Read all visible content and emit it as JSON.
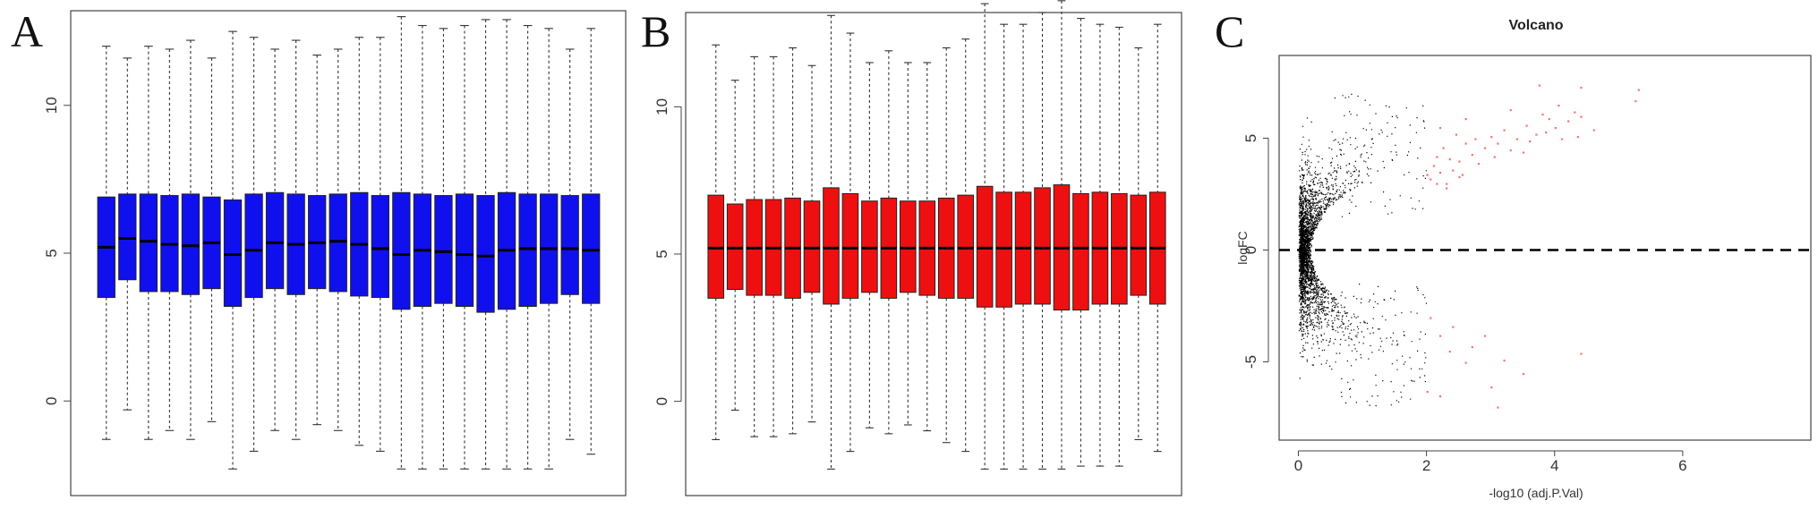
{
  "panels": {
    "a": {
      "label": "A"
    },
    "b": {
      "label": "B"
    },
    "c": {
      "label": "C"
    }
  },
  "chart_data": [
    {
      "type": "boxplot",
      "panel": "A",
      "box_color": "#1010ee",
      "ylim": [
        -3.2,
        13.2
      ],
      "yticks": [
        0,
        5,
        10
      ],
      "boxes": [
        {
          "q1": 3.5,
          "median": 5.2,
          "q3": 6.9,
          "whisker_low": -1.3,
          "whisker_high": 12.0
        },
        {
          "q1": 4.1,
          "median": 5.5,
          "q3": 7.0,
          "whisker_low": -0.3,
          "whisker_high": 11.6
        },
        {
          "q1": 3.7,
          "median": 5.4,
          "q3": 7.0,
          "whisker_low": -1.3,
          "whisker_high": 12.0
        },
        {
          "q1": 3.7,
          "median": 5.3,
          "q3": 6.95,
          "whisker_low": -1.0,
          "whisker_high": 11.9
        },
        {
          "q1": 3.6,
          "median": 5.25,
          "q3": 7.0,
          "whisker_low": -1.3,
          "whisker_high": 12.2
        },
        {
          "q1": 3.8,
          "median": 5.35,
          "q3": 6.9,
          "whisker_low": -0.7,
          "whisker_high": 11.6
        },
        {
          "q1": 3.2,
          "median": 4.95,
          "q3": 6.8,
          "whisker_low": -2.3,
          "whisker_high": 12.5
        },
        {
          "q1": 3.5,
          "median": 5.1,
          "q3": 7.0,
          "whisker_low": -1.7,
          "whisker_high": 12.3
        },
        {
          "q1": 3.8,
          "median": 5.35,
          "q3": 7.05,
          "whisker_low": -1.0,
          "whisker_high": 11.9
        },
        {
          "q1": 3.6,
          "median": 5.3,
          "q3": 7.0,
          "whisker_low": -1.3,
          "whisker_high": 12.2
        },
        {
          "q1": 3.8,
          "median": 5.35,
          "q3": 6.95,
          "whisker_low": -0.8,
          "whisker_high": 11.7
        },
        {
          "q1": 3.7,
          "median": 5.4,
          "q3": 7.0,
          "whisker_low": -1.0,
          "whisker_high": 11.9
        },
        {
          "q1": 3.55,
          "median": 5.3,
          "q3": 7.05,
          "whisker_low": -1.5,
          "whisker_high": 12.3
        },
        {
          "q1": 3.5,
          "median": 5.15,
          "q3": 6.95,
          "whisker_low": -1.7,
          "whisker_high": 12.3
        },
        {
          "q1": 3.1,
          "median": 4.95,
          "q3": 7.05,
          "whisker_low": -2.3,
          "whisker_high": 13.0
        },
        {
          "q1": 3.2,
          "median": 5.1,
          "q3": 7.0,
          "whisker_low": -2.3,
          "whisker_high": 12.7
        },
        {
          "q1": 3.3,
          "median": 5.05,
          "q3": 6.95,
          "whisker_low": -2.3,
          "whisker_high": 12.6
        },
        {
          "q1": 3.2,
          "median": 4.95,
          "q3": 7.0,
          "whisker_low": -2.3,
          "whisker_high": 12.7
        },
        {
          "q1": 3.0,
          "median": 4.9,
          "q3": 6.95,
          "whisker_low": -2.3,
          "whisker_high": 12.9
        },
        {
          "q1": 3.1,
          "median": 5.1,
          "q3": 7.05,
          "whisker_low": -2.3,
          "whisker_high": 12.9
        },
        {
          "q1": 3.2,
          "median": 5.15,
          "q3": 7.0,
          "whisker_low": -2.3,
          "whisker_high": 12.7
        },
        {
          "q1": 3.3,
          "median": 5.15,
          "q3": 7.0,
          "whisker_low": -2.3,
          "whisker_high": 12.6
        },
        {
          "q1": 3.6,
          "median": 5.15,
          "q3": 6.95,
          "whisker_low": -1.3,
          "whisker_high": 11.9
        },
        {
          "q1": 3.3,
          "median": 5.1,
          "q3": 7.0,
          "whisker_low": -1.8,
          "whisker_high": 12.6
        }
      ]
    },
    {
      "type": "boxplot",
      "panel": "B",
      "box_color": "#ee1010",
      "ylim": [
        -3.2,
        13.2
      ],
      "yticks": [
        0,
        5,
        10
      ],
      "boxes": [
        {
          "q1": 3.5,
          "median": 5.2,
          "q3": 7.0,
          "whisker_low": -1.3,
          "whisker_high": 12.1
        },
        {
          "q1": 3.8,
          "median": 5.2,
          "q3": 6.7,
          "whisker_low": -0.3,
          "whisker_high": 10.9
        },
        {
          "q1": 3.6,
          "median": 5.2,
          "q3": 6.85,
          "whisker_low": -1.2,
          "whisker_high": 11.7
        },
        {
          "q1": 3.6,
          "median": 5.2,
          "q3": 6.85,
          "whisker_low": -1.2,
          "whisker_high": 11.7
        },
        {
          "q1": 3.5,
          "median": 5.2,
          "q3": 6.9,
          "whisker_low": -1.1,
          "whisker_high": 12.0
        },
        {
          "q1": 3.7,
          "median": 5.2,
          "q3": 6.8,
          "whisker_low": -0.7,
          "whisker_high": 11.4
        },
        {
          "q1": 3.3,
          "median": 5.2,
          "q3": 7.25,
          "whisker_low": -2.3,
          "whisker_high": 13.1
        },
        {
          "q1": 3.5,
          "median": 5.2,
          "q3": 7.05,
          "whisker_low": -1.7,
          "whisker_high": 12.5
        },
        {
          "q1": 3.7,
          "median": 5.2,
          "q3": 6.8,
          "whisker_low": -0.9,
          "whisker_high": 11.5
        },
        {
          "q1": 3.5,
          "median": 5.2,
          "q3": 6.9,
          "whisker_low": -1.1,
          "whisker_high": 11.9
        },
        {
          "q1": 3.7,
          "median": 5.2,
          "q3": 6.8,
          "whisker_low": -0.8,
          "whisker_high": 11.5
        },
        {
          "q1": 3.6,
          "median": 5.2,
          "q3": 6.8,
          "whisker_low": -1.0,
          "whisker_high": 11.5
        },
        {
          "q1": 3.5,
          "median": 5.2,
          "q3": 6.9,
          "whisker_low": -1.4,
          "whisker_high": 12.0
        },
        {
          "q1": 3.5,
          "median": 5.2,
          "q3": 7.0,
          "whisker_low": -1.7,
          "whisker_high": 12.3
        },
        {
          "q1": 3.2,
          "median": 5.2,
          "q3": 7.3,
          "whisker_low": -2.3,
          "whisker_high": 13.5
        },
        {
          "q1": 3.2,
          "median": 5.2,
          "q3": 7.1,
          "whisker_low": -2.3,
          "whisker_high": 12.8
        },
        {
          "q1": 3.3,
          "median": 5.2,
          "q3": 7.1,
          "whisker_low": -2.3,
          "whisker_high": 12.8
        },
        {
          "q1": 3.3,
          "median": 5.2,
          "q3": 7.25,
          "whisker_low": -2.3,
          "whisker_high": 13.2
        },
        {
          "q1": 3.1,
          "median": 5.2,
          "q3": 7.35,
          "whisker_low": -2.3,
          "whisker_high": 13.6
        },
        {
          "q1": 3.1,
          "median": 5.2,
          "q3": 7.05,
          "whisker_low": -2.2,
          "whisker_high": 13.0
        },
        {
          "q1": 3.3,
          "median": 5.2,
          "q3": 7.1,
          "whisker_low": -2.2,
          "whisker_high": 12.8
        },
        {
          "q1": 3.3,
          "median": 5.2,
          "q3": 7.05,
          "whisker_low": -2.2,
          "whisker_high": 12.7
        },
        {
          "q1": 3.6,
          "median": 5.2,
          "q3": 7.0,
          "whisker_low": -1.3,
          "whisker_high": 12.0
        },
        {
          "q1": 3.3,
          "median": 5.2,
          "q3": 7.1,
          "whisker_low": -1.7,
          "whisker_high": 12.8
        }
      ]
    },
    {
      "type": "scatter",
      "panel": "C",
      "title": "Volcano",
      "xlabel": "-log10 (adj.P.Val)",
      "ylabel": "logFC",
      "xlim": [
        -0.3,
        8.0
      ],
      "ylim": [
        -8.5,
        8.7
      ],
      "xticks": [
        0,
        2,
        4,
        6
      ],
      "yticks": [
        -5,
        0,
        5
      ],
      "hline": 0,
      "colors": {
        "not_significant": "#000000",
        "significant": "#ff7070"
      },
      "significant_points": [
        [
          2.05,
          3.2
        ],
        [
          2.1,
          3.8
        ],
        [
          2.15,
          4.2
        ],
        [
          2.2,
          3.5
        ],
        [
          2.25,
          4.6
        ],
        [
          2.3,
          3.0
        ],
        [
          2.35,
          4.1
        ],
        [
          2.4,
          3.6
        ],
        [
          2.45,
          5.2
        ],
        [
          2.5,
          4.0
        ],
        [
          2.55,
          3.4
        ],
        [
          2.6,
          4.8
        ],
        [
          2.7,
          4.3
        ],
        [
          2.75,
          5.0
        ],
        [
          2.8,
          3.9
        ],
        [
          2.9,
          4.6
        ],
        [
          3.0,
          5.1
        ],
        [
          3.05,
          4.2
        ],
        [
          3.1,
          4.8
        ],
        [
          3.2,
          5.4
        ],
        [
          3.3,
          4.5
        ],
        [
          3.4,
          5.0
        ],
        [
          3.5,
          4.4
        ],
        [
          3.55,
          5.6
        ],
        [
          3.6,
          4.9
        ],
        [
          3.7,
          5.2
        ],
        [
          3.8,
          6.1
        ],
        [
          3.85,
          5.3
        ],
        [
          3.9,
          5.9
        ],
        [
          4.0,
          5.5
        ],
        [
          4.05,
          6.5
        ],
        [
          4.1,
          5.0
        ],
        [
          4.2,
          5.8
        ],
        [
          4.3,
          6.2
        ],
        [
          4.35,
          5.1
        ],
        [
          4.4,
          6.0
        ],
        [
          2.2,
          5.5
        ],
        [
          2.6,
          5.9
        ],
        [
          3.3,
          6.3
        ],
        [
          3.75,
          7.4
        ],
        [
          4.4,
          7.3
        ],
        [
          5.3,
          7.2
        ],
        [
          5.25,
          6.7
        ],
        [
          4.6,
          5.4
        ],
        [
          2.0,
          3.4
        ],
        [
          2.3,
          2.8
        ],
        [
          2.15,
          3.0
        ],
        [
          2.5,
          3.3
        ],
        [
          2.05,
          -3.0
        ],
        [
          2.2,
          -3.8
        ],
        [
          2.35,
          -4.5
        ],
        [
          2.4,
          -3.4
        ],
        [
          2.6,
          -5.0
        ],
        [
          2.9,
          -3.8
        ],
        [
          3.0,
          -6.1
        ],
        [
          3.2,
          -4.9
        ],
        [
          3.5,
          -5.5
        ],
        [
          4.4,
          -4.6
        ],
        [
          2.0,
          -6.3
        ],
        [
          2.2,
          -6.5
        ],
        [
          3.1,
          -7.0
        ],
        [
          2.7,
          -4.3
        ]
      ]
    }
  ]
}
